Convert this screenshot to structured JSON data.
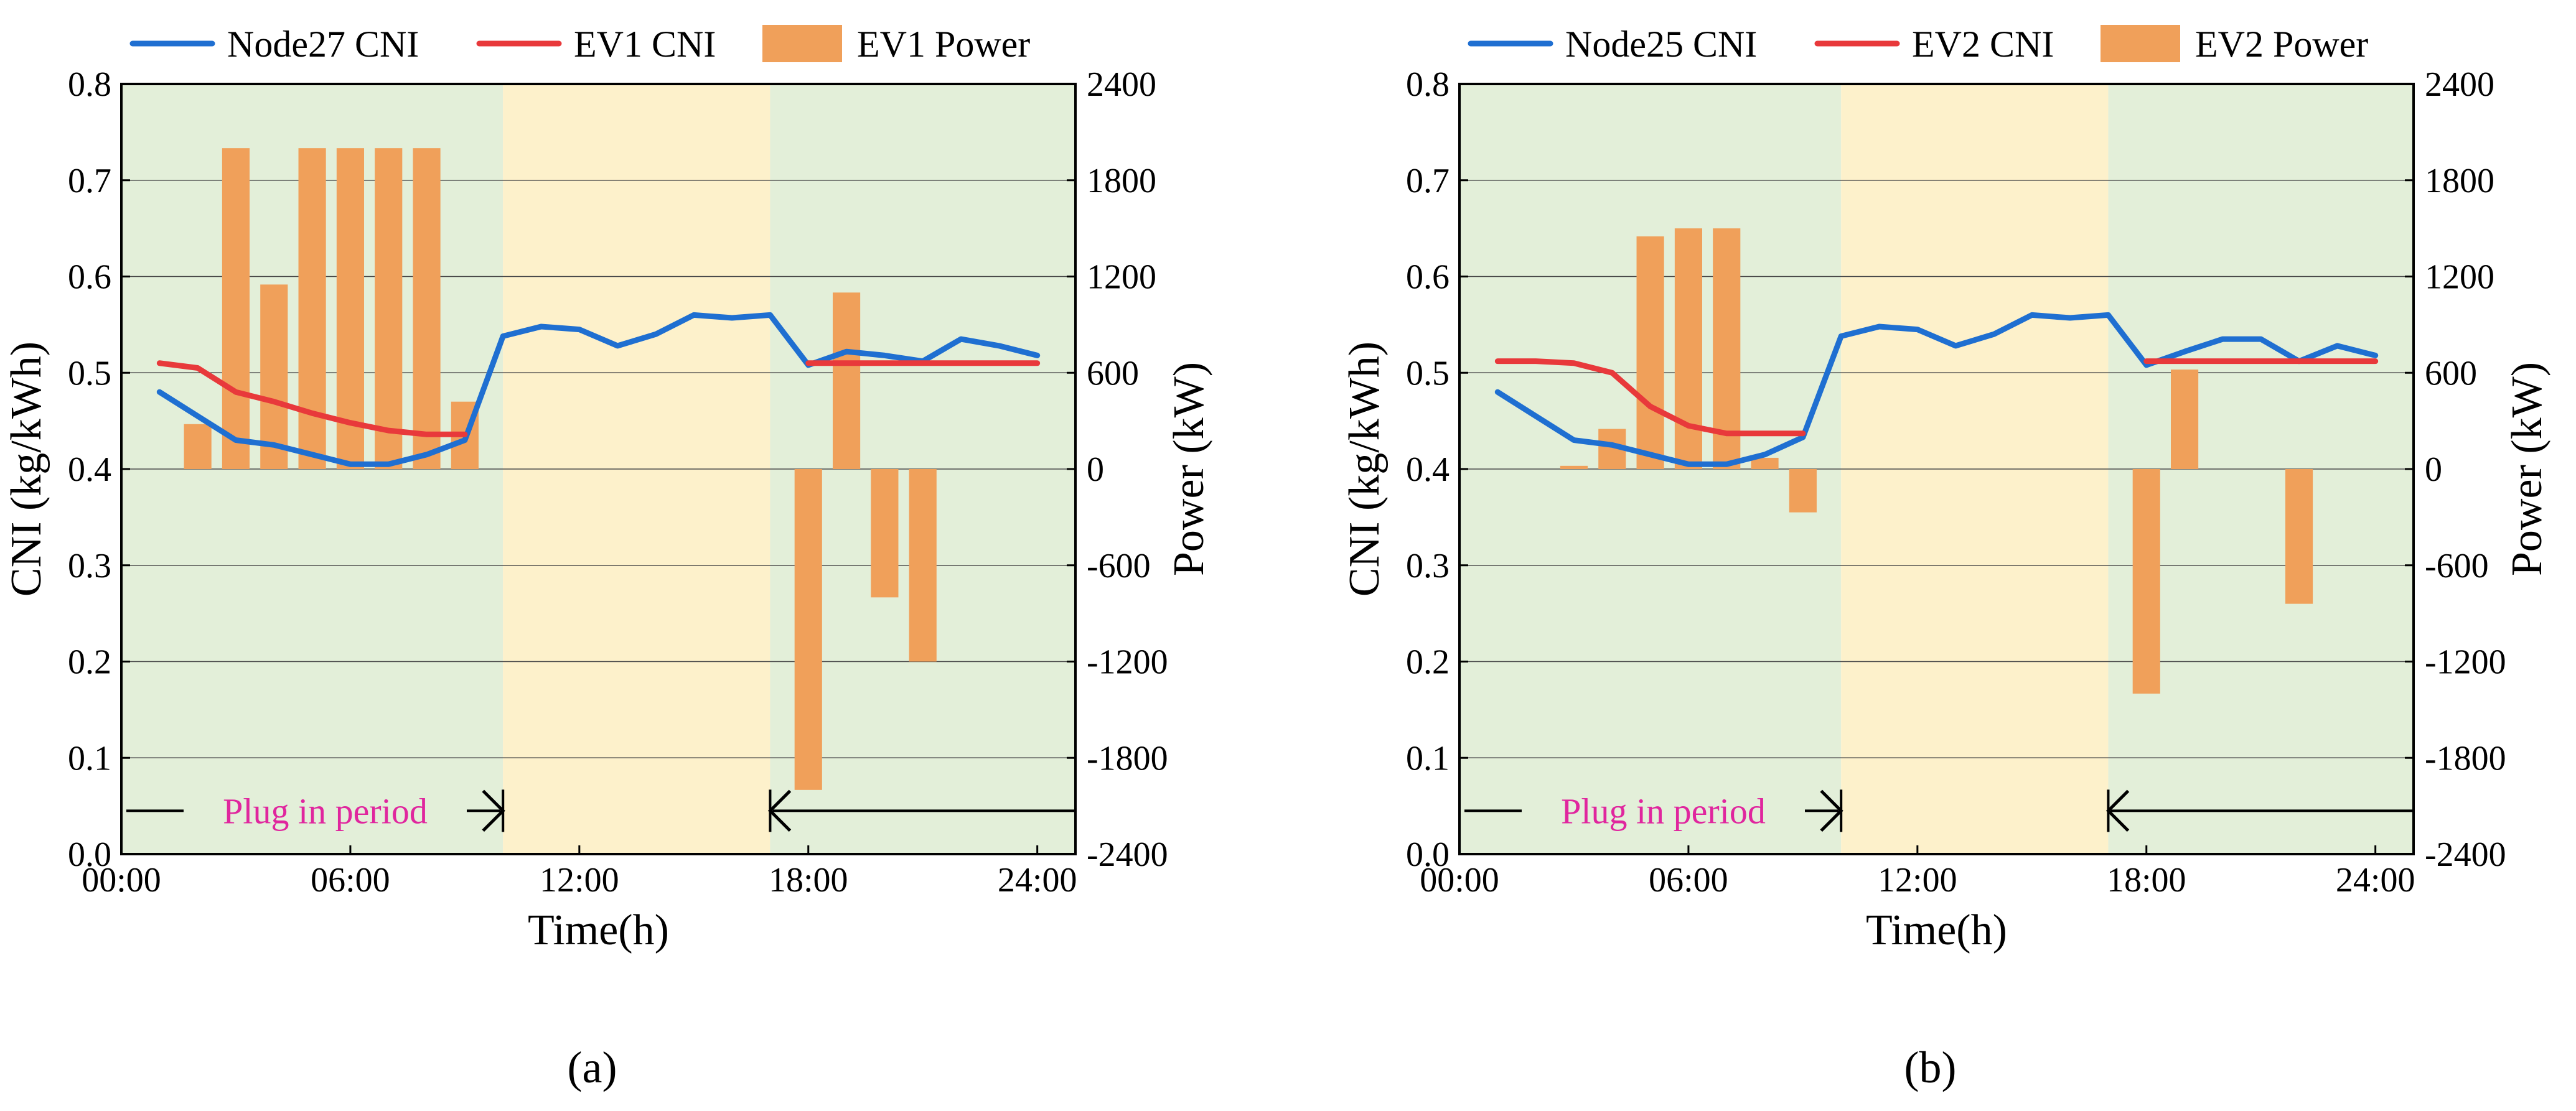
{
  "colors": {
    "node_line": "#1f6fd1",
    "ev_line": "#e8393b",
    "bar": "#f0a05a",
    "bg_green": "#e3efd9",
    "bg_yellow": "#fdf1cb",
    "annotation": "#e0269e"
  },
  "chart_data": [
    {
      "type": "bar+line",
      "panel_label": "(a)",
      "xlabel": "Time(h)",
      "ylabel_left": "CNI (kg/kWh)",
      "ylabel_right": "Power (kW)",
      "xlim": [
        0,
        25
      ],
      "ylim_left": [
        0,
        0.8
      ],
      "ylim_right": [
        -2400,
        2400
      ],
      "x_ticks": [
        0,
        6,
        12,
        18,
        24
      ],
      "x_tick_labels": [
        "00:00",
        "06:00",
        "12:00",
        "18:00",
        "24:00"
      ],
      "y_left_ticks": [
        0,
        0.1,
        0.2,
        0.3,
        0.4,
        0.5,
        0.6,
        0.7,
        0.8
      ],
      "y_left_tick_labels": [
        "0.0",
        "0.1",
        "0.2",
        "0.3",
        "0.4",
        "0.5",
        "0.6",
        "0.7",
        "0.8"
      ],
      "y_right_ticks": [
        -2400,
        -1800,
        -1200,
        -600,
        0,
        600,
        1200,
        1800,
        2400
      ],
      "y_right_tick_labels": [
        "-2400",
        "-1800",
        "-1200",
        "-600",
        "0",
        "600",
        "1200",
        "1800",
        "2400"
      ],
      "gridlines": "horizontal",
      "background_periods": [
        {
          "x0": 0,
          "x1": 10,
          "color": "green"
        },
        {
          "x0": 10,
          "x1": 17,
          "color": "yellow"
        },
        {
          "x0": 17,
          "x1": 25,
          "color": "green"
        }
      ],
      "legend": [
        {
          "label": "Node27 CNI",
          "type": "line",
          "color": "node_line"
        },
        {
          "label": "EV1 CNI",
          "type": "line",
          "color": "ev_line"
        },
        {
          "label": "EV1 Power",
          "type": "bar",
          "color": "bar"
        }
      ],
      "annotation": {
        "text": "Plug in period",
        "left_arrow_range": [
          0,
          10
        ],
        "right_arrow_range": [
          17,
          25
        ],
        "y": 0.045
      },
      "series": [
        {
          "name": "Node27 CNI",
          "axis": "left",
          "type": "line",
          "x": [
            1,
            2,
            3,
            4,
            5,
            6,
            7,
            8,
            9,
            10,
            11,
            12,
            13,
            14,
            15,
            16,
            17,
            18,
            19,
            20,
            21,
            22,
            23,
            24
          ],
          "values": [
            0.48,
            0.455,
            0.43,
            0.425,
            0.415,
            0.405,
            0.405,
            0.415,
            0.43,
            0.538,
            0.548,
            0.545,
            0.528,
            0.54,
            0.56,
            0.557,
            0.56,
            0.508,
            0.522,
            0.518,
            0.512,
            0.535,
            0.528,
            0.518
          ]
        },
        {
          "name": "EV1 CNI",
          "axis": "left",
          "type": "line",
          "segments": [
            {
              "x": [
                1,
                2,
                3,
                4,
                5,
                6,
                7,
                8,
                9
              ],
              "values": [
                0.51,
                0.505,
                0.48,
                0.47,
                0.458,
                0.448,
                0.44,
                0.436,
                0.436
              ]
            },
            {
              "x": [
                18,
                19,
                20,
                21,
                22,
                23,
                24
              ],
              "values": [
                0.51,
                0.51,
                0.51,
                0.51,
                0.51,
                0.51,
                0.51
              ]
            }
          ]
        },
        {
          "name": "EV1 Power",
          "axis": "right",
          "type": "bar",
          "x": [
            2,
            3,
            4,
            5,
            6,
            7,
            8,
            9,
            18,
            19,
            20,
            21
          ],
          "values": [
            280,
            2000,
            1150,
            2000,
            2000,
            2000,
            2000,
            420,
            -2000,
            1100,
            -800,
            -1200
          ]
        }
      ]
    },
    {
      "type": "bar+line",
      "panel_label": "(b)",
      "xlabel": "Time(h)",
      "ylabel_left": "CNI (kg/kWh)",
      "ylabel_right": "Power (kW)",
      "xlim": [
        0,
        25
      ],
      "ylim_left": [
        0,
        0.8
      ],
      "ylim_right": [
        -2400,
        2400
      ],
      "x_ticks": [
        0,
        6,
        12,
        18,
        24
      ],
      "x_tick_labels": [
        "00:00",
        "06:00",
        "12:00",
        "18:00",
        "24:00"
      ],
      "y_left_ticks": [
        0,
        0.1,
        0.2,
        0.3,
        0.4,
        0.5,
        0.6,
        0.7,
        0.8
      ],
      "y_left_tick_labels": [
        "0.0",
        "0.1",
        "0.2",
        "0.3",
        "0.4",
        "0.5",
        "0.6",
        "0.7",
        "0.8"
      ],
      "y_right_ticks": [
        -2400,
        -1800,
        -1200,
        -600,
        0,
        600,
        1200,
        1800,
        2400
      ],
      "y_right_tick_labels": [
        "-2400",
        "-1800",
        "-1200",
        "-600",
        "0",
        "600",
        "1200",
        "1800",
        "2400"
      ],
      "gridlines": "horizontal",
      "background_periods": [
        {
          "x0": 0,
          "x1": 10,
          "color": "green"
        },
        {
          "x0": 10,
          "x1": 17,
          "color": "yellow"
        },
        {
          "x0": 17,
          "x1": 25,
          "color": "green"
        }
      ],
      "legend": [
        {
          "label": "Node25 CNI",
          "type": "line",
          "color": "node_line"
        },
        {
          "label": "EV2 CNI",
          "type": "line",
          "color": "ev_line"
        },
        {
          "label": "EV2 Power",
          "type": "bar",
          "color": "bar"
        }
      ],
      "annotation": {
        "text": "Plug in period",
        "left_arrow_range": [
          0,
          10
        ],
        "right_arrow_range": [
          17,
          25
        ],
        "y": 0.045
      },
      "series": [
        {
          "name": "Node25 CNI",
          "axis": "left",
          "type": "line",
          "x": [
            1,
            2,
            3,
            4,
            5,
            6,
            7,
            8,
            9,
            10,
            11,
            12,
            13,
            14,
            15,
            16,
            17,
            18,
            19,
            20,
            21,
            22,
            23,
            24
          ],
          "values": [
            0.48,
            0.455,
            0.43,
            0.425,
            0.415,
            0.405,
            0.405,
            0.415,
            0.433,
            0.538,
            0.548,
            0.545,
            0.528,
            0.54,
            0.56,
            0.557,
            0.56,
            0.508,
            0.522,
            0.535,
            0.535,
            0.512,
            0.528,
            0.518
          ]
        },
        {
          "name": "EV2 CNI",
          "axis": "left",
          "type": "line",
          "segments": [
            {
              "x": [
                1,
                2,
                3,
                4,
                5,
                6,
                7,
                8,
                9
              ],
              "values": [
                0.512,
                0.512,
                0.51,
                0.5,
                0.465,
                0.445,
                0.437,
                0.437,
                0.437
              ]
            },
            {
              "x": [
                18,
                19,
                20,
                21,
                22,
                23,
                24
              ],
              "values": [
                0.512,
                0.512,
                0.512,
                0.512,
                0.512,
                0.512,
                0.512
              ]
            }
          ]
        },
        {
          "name": "EV2 Power",
          "axis": "right",
          "type": "bar",
          "x": [
            3,
            4,
            5,
            6,
            7,
            8,
            9,
            18,
            19,
            22
          ],
          "values": [
            20,
            250,
            1450,
            1500,
            1500,
            70,
            -270,
            -1400,
            620,
            -840
          ]
        }
      ]
    }
  ]
}
